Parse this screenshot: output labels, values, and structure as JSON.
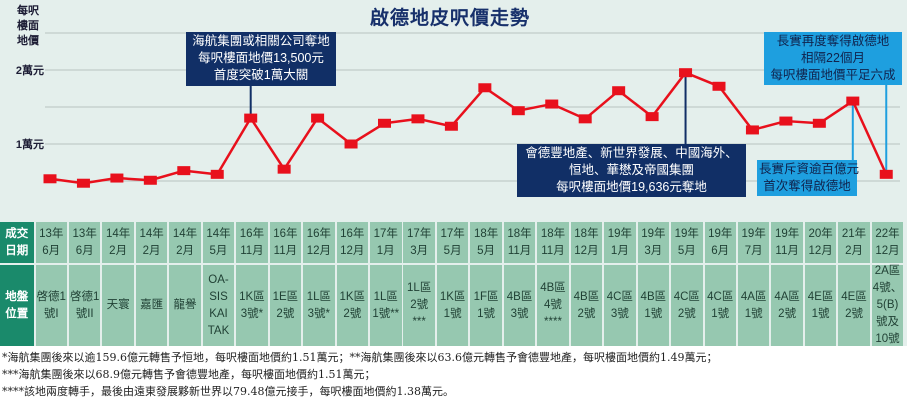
{
  "title": "啟德地皮呎價走勢",
  "y_axis": {
    "unit_label": [
      "每呎",
      "樓面",
      "地價"
    ],
    "ticks": [
      {
        "label": "2萬元",
        "value": 20000
      },
      {
        "label": "1萬元",
        "value": 10000
      }
    ]
  },
  "colors": {
    "background": "#e4efec",
    "line": "#e8101c",
    "marker": "#e8101c",
    "grid": "#b9c3c1",
    "title": "#17306b",
    "annotation_navy": "#112f66",
    "annotation_sky": "#1e9fdf",
    "table_header": "#1a8a6b",
    "table_cell": "#96c8b0"
  },
  "annotations": [
    {
      "lines": [
        "海航集團或相關公司奪地",
        "每呎樓面地價13,500元",
        "首度突破1萬大關"
      ],
      "point_index": 6,
      "style": "navy"
    },
    {
      "lines": [
        "會德豐地產、新世界發展、中國海外、",
        "恒地、華懋及帝國集團",
        "每呎樓面地價19,636元奪地"
      ],
      "point_index": 19,
      "style": "navy"
    },
    {
      "lines": [
        "長實再度奪得啟德地",
        "相隔22個月",
        "每呎樓面地價平足六成"
      ],
      "point_index": 25,
      "style": "sky"
    },
    {
      "lines": [
        "長實斥資逾百億元",
        "首次奪得啟德地"
      ],
      "point_index": 24,
      "style": "sky"
    }
  ],
  "table": {
    "row_headers": [
      {
        "lines": "成交\n日期"
      },
      {
        "lines": "地盤\n位置"
      }
    ],
    "dates": [
      "13年\n6月",
      "13年\n6月",
      "14年\n2月",
      "14年\n2月",
      "14年\n2月",
      "14年\n5月",
      "16年\n11月",
      "16年\n11月",
      "16年\n12月",
      "16年\n12月",
      "17年\n1月",
      "17年\n3月",
      "17年\n5月",
      "18年\n5月",
      "18年\n11月",
      "18年\n11月",
      "18年\n12月",
      "19年\n1月",
      "19年\n3月",
      "19年\n5月",
      "19年\n6月",
      "19年\n7月",
      "19年\n11月",
      "20年\n12月",
      "21年\n2月",
      "22年\n12月"
    ],
    "sites": [
      "啓德1\n號I",
      "啓德1\n號II",
      "天寰",
      "嘉匯",
      "龍譽",
      "OA-\nSIS\nKAI\nTAK",
      "1K區\n3號*",
      "1E區\n2號",
      "1L區\n3號*",
      "1K區\n2號",
      "1L區\n1號**",
      "1L區\n2號\n***",
      "1K區\n1號",
      "1F區\n1號",
      "4B區\n3號",
      "4B區\n4號\n****",
      "4B區\n2號",
      "4C區\n3號",
      "4B區\n1號",
      "4C區\n2號",
      "4C區\n1號",
      "4A區\n1號",
      "4A區\n2號",
      "4E區\n1號",
      "4E區\n2號",
      "2A區\n4號、\n5(B)\n號及\n10號"
    ]
  },
  "footnotes": [
    "*海航集團後來以逾159.6億元轉售予恒地，每呎樓面地價約1.51萬元；**海航集團後來以63.6億元轉售予會德豐地產，每呎樓面地價約1.49萬元；",
    "***海航集團後來以68.9億元轉售予會德豐地產，每呎樓面地價約1.51萬元；",
    "****該地兩度轉手，最後由遠東發展夥新世界以79.48億元接手，每呎樓面地價約1.38萬元。"
  ],
  "chart_data": {
    "type": "line",
    "title": "啟德地皮呎價走勢",
    "xlabel": "成交日期",
    "ylabel": "每呎樓面地價",
    "categories": [
      "13年6月",
      "13年6月",
      "14年2月",
      "14年2月",
      "14年2月",
      "14年5月",
      "16年11月",
      "16年11月",
      "16年12月",
      "16年12月",
      "17年1月",
      "17年3月",
      "17年5月",
      "18年5月",
      "18年11月",
      "18年11月",
      "18年12月",
      "19年1月",
      "19年3月",
      "19年5月",
      "19年6月",
      "19年7月",
      "19年11月",
      "20年12月",
      "21年2月",
      "22年12月"
    ],
    "sites": [
      "啓德1號I",
      "啓德1號II",
      "天寰",
      "嘉匯",
      "龍譽",
      "OASIS KAI TAK",
      "1K區3號",
      "1E區2號",
      "1L區3號",
      "1K區2號",
      "1L區1號",
      "1L區2號",
      "1K區1號",
      "1F區1號",
      "4B區3號",
      "4B區4號",
      "4B區2號",
      "4C區3號",
      "4B區1號",
      "4C區2號",
      "4C區1號",
      "4A區1號",
      "4A區2號",
      "4E區1號",
      "4E區2號",
      "2A區4號、5(B)號及10號"
    ],
    "series": [
      {
        "name": "每呎樓面地價(元)",
        "values": [
          5300,
          4700,
          5400,
          5100,
          6400,
          5900,
          13500,
          6600,
          13500,
          10000,
          12800,
          13400,
          12400,
          17600,
          14500,
          15400,
          13400,
          17200,
          13700,
          19636,
          17800,
          11900,
          13100,
          12800,
          15800,
          5900
        ]
      }
    ],
    "ylim": [
      2500,
      25000
    ],
    "yticks": [
      {
        "value": 10000,
        "label": "1萬元"
      },
      {
        "value": 20000,
        "label": "2萬元"
      }
    ],
    "grid": true,
    "legend": "none"
  }
}
